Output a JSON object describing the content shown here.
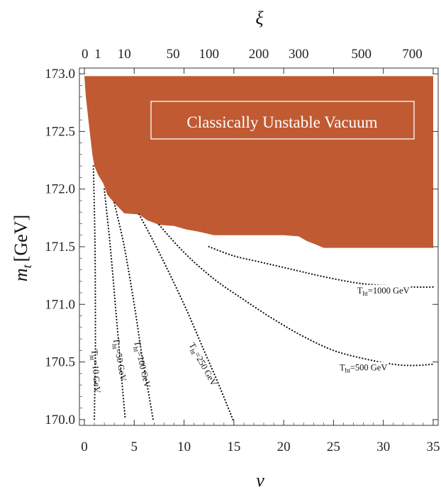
{
  "chart_data": {
    "type": "area",
    "title": "",
    "xlabel": "ν",
    "ylabel": "m",
    "ylabel_sub": "t",
    "ylabel_unit": "[GeV]",
    "top_axis_label": "ξ",
    "xlim": [
      -0.5,
      35.5
    ],
    "ylim": [
      169.95,
      173.05
    ],
    "x_ticks": [
      0,
      5,
      10,
      15,
      20,
      25,
      30,
      35
    ],
    "x_tick_labels": [
      "0",
      "5",
      "10",
      "15",
      "20",
      "25",
      "30",
      "35"
    ],
    "y_ticks": [
      170.0,
      170.5,
      171.0,
      171.5,
      172.0,
      172.5,
      173.0
    ],
    "y_tick_labels": [
      "170.0",
      "170.5",
      "171.0",
      "171.5",
      "172.0",
      "172.5",
      "173.0"
    ],
    "top_ticks": [
      {
        "label": "0",
        "nu": 0.05
      },
      {
        "label": "1",
        "nu": 1.35
      },
      {
        "label": "10",
        "nu": 4.0
      },
      {
        "label": "50",
        "nu": 8.9
      },
      {
        "label": "100",
        "nu": 12.5
      },
      {
        "label": "200",
        "nu": 17.5
      },
      {
        "label": "300",
        "nu": 21.5
      },
      {
        "label": "500",
        "nu": 27.8
      },
      {
        "label": "700",
        "nu": 32.9
      }
    ],
    "colors": {
      "unstable_region": "#c05a32",
      "curves": "#111111"
    },
    "unstable_region": {
      "label": "Classically Unstable Vacuum",
      "boundary": [
        [
          0.0,
          172.98
        ],
        [
          0.15,
          172.8
        ],
        [
          0.4,
          172.6
        ],
        [
          0.6,
          172.45
        ],
        [
          0.8,
          172.3
        ],
        [
          1.0,
          172.2
        ],
        [
          1.4,
          172.12
        ],
        [
          1.9,
          172.05
        ],
        [
          2.3,
          171.95
        ],
        [
          3.0,
          171.88
        ],
        [
          4.0,
          171.79
        ],
        [
          5.5,
          171.78
        ],
        [
          6.3,
          171.73
        ],
        [
          7.5,
          171.69
        ],
        [
          9.0,
          171.68
        ],
        [
          10.2,
          171.65
        ],
        [
          11.5,
          171.63
        ],
        [
          13.0,
          171.6
        ],
        [
          15.0,
          171.6
        ],
        [
          17.5,
          171.6
        ],
        [
          20.0,
          171.6
        ],
        [
          21.5,
          171.59
        ],
        [
          22.3,
          171.55
        ],
        [
          23.2,
          171.52
        ],
        [
          24.0,
          171.49
        ],
        [
          30.0,
          171.49
        ],
        [
          35.0,
          171.49
        ],
        [
          35.0,
          172.98
        ]
      ]
    },
    "series": [
      {
        "name": "T_ht=10 GeV",
        "label_main": "T",
        "label_sub": "ht",
        "label_rest": "=10 GeV",
        "x": [
          0.9,
          1.05,
          1.1,
          1.1,
          1.05,
          1.0
        ],
        "y": [
          172.2,
          171.6,
          171.0,
          170.6,
          170.3,
          170.0
        ]
      },
      {
        "name": "T_ht=50 GeV",
        "label_main": "T",
        "label_sub": "ht",
        "label_rest": "=50 GeV",
        "x": [
          2.0,
          2.6,
          3.1,
          3.5,
          3.8,
          4.1
        ],
        "y": [
          172.0,
          171.5,
          171.0,
          170.6,
          170.3,
          170.0
        ]
      },
      {
        "name": "T_ht=100 GeV",
        "label_main": "T",
        "label_sub": "ht",
        "label_rest": "=100 GeV",
        "x": [
          3.0,
          4.0,
          5.0,
          5.7,
          6.3,
          6.9
        ],
        "y": [
          171.88,
          171.5,
          171.0,
          170.6,
          170.3,
          170.0
        ]
      },
      {
        "name": "T_ht=250 GeV",
        "label_main": "T",
        "label_sub": "ht",
        "label_rest": "=250 GeV",
        "x": [
          5.5,
          7.5,
          10.0,
          12.0,
          13.5,
          14.9
        ],
        "y": [
          171.78,
          171.45,
          171.0,
          170.6,
          170.3,
          170.0
        ]
      },
      {
        "name": "T_ht=500 GeV",
        "label_main": "T",
        "label_sub": "ht",
        "label_rest": "=500 GeV",
        "x": [
          7.5,
          10,
          13,
          16,
          19,
          22,
          25,
          28,
          31,
          33,
          35
        ],
        "y": [
          171.69,
          171.45,
          171.22,
          171.04,
          170.87,
          170.72,
          170.6,
          170.53,
          170.48,
          170.47,
          170.48
        ]
      },
      {
        "name": "T_ht=1000 GeV",
        "label_main": "T",
        "label_sub": "ht",
        "label_rest": "=1000 GeV",
        "x": [
          12.5,
          15,
          18,
          21,
          24,
          27,
          29,
          31,
          33,
          35
        ],
        "y": [
          171.5,
          171.42,
          171.36,
          171.3,
          171.24,
          171.19,
          171.17,
          171.16,
          171.15,
          171.15
        ]
      }
    ]
  }
}
